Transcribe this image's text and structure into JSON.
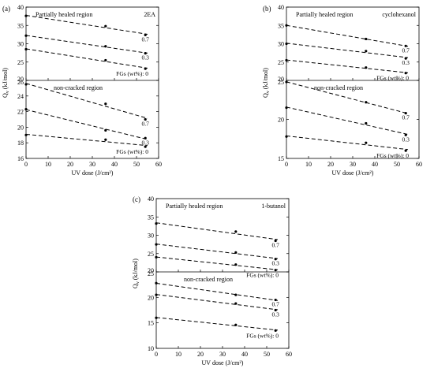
{
  "chart_data": [
    {
      "type": "scatter",
      "panel_label": "(a)",
      "solvent": "2EA",
      "xlabel": "UV dose (J/cm²)",
      "ylabel": "Qv (kJ/mol)",
      "xlim": [
        0,
        60
      ],
      "xticks": [
        "0",
        "10",
        "20",
        "30",
        "40",
        "50",
        "60"
      ],
      "fg_label": "FGs (wt%): 0",
      "subplots": [
        {
          "name": "Partially healed region",
          "ylim": [
            20,
            40
          ],
          "yticks": [
            "20",
            "25",
            "30",
            "35",
            "40"
          ],
          "series": [
            {
              "name": "0",
              "x": [
                0,
                36,
                54
              ],
              "y": [
                28.5,
                25.5,
                23.2
              ]
            },
            {
              "name": "0.3",
              "x": [
                0,
                36,
                54
              ],
              "y": [
                32.2,
                29.3,
                27.4
              ]
            },
            {
              "name": "0.7",
              "x": [
                0,
                36,
                54
              ],
              "y": [
                37.6,
                34.8,
                32.4
              ]
            }
          ],
          "series_labels": [
            "0.7",
            "0.3"
          ],
          "show_fg_label": true
        },
        {
          "name": "non-cracked region",
          "ylim": [
            16,
            26
          ],
          "yticks": [
            "16",
            "18",
            "20",
            "22",
            "24",
            "26"
          ],
          "series": [
            {
              "name": "0",
              "x": [
                0,
                36,
                54
              ],
              "y": [
                19.0,
                18.4,
                17.5
              ]
            },
            {
              "name": "0.3",
              "x": [
                0,
                36,
                54
              ],
              "y": [
                22.3,
                19.6,
                18.6
              ]
            },
            {
              "name": "0.7",
              "x": [
                0,
                36,
                54
              ],
              "y": [
                25.5,
                23.0,
                21.0
              ]
            }
          ],
          "series_labels": [
            "0.7",
            "0.3"
          ],
          "show_fg_label": true
        }
      ]
    },
    {
      "type": "scatter",
      "panel_label": "(b)",
      "solvent": "cyclohexanol",
      "xlabel": "UV dose (J/cm²)",
      "ylabel": "Qv (kJ/mol)",
      "xlim": [
        0,
        60
      ],
      "xticks": [
        "0",
        "10",
        "20",
        "30",
        "40",
        "50",
        "60"
      ],
      "fg_label": "FGs (wt%): 0",
      "subplots": [
        {
          "name": "Partially healed region",
          "ylim": [
            20,
            40
          ],
          "yticks": [
            "20",
            "25",
            "30",
            "35",
            "40"
          ],
          "series": [
            {
              "name": "0",
              "x": [
                0,
                36,
                54
              ],
              "y": [
                25.5,
                23.5,
                22.0
              ]
            },
            {
              "name": "0.3",
              "x": [
                0,
                36,
                54
              ],
              "y": [
                30.0,
                28.0,
                26.0
              ]
            },
            {
              "name": "0.7",
              "x": [
                0,
                36,
                54
              ],
              "y": [
                35.0,
                31.3,
                29.4
              ]
            }
          ],
          "series_labels": [
            "0.7",
            "0.3"
          ],
          "show_fg_label": true
        },
        {
          "name": "non-cracked region",
          "ylim": [
            15,
            25
          ],
          "yticks": [
            "15",
            "20",
            "25"
          ],
          "series": [
            {
              "name": "0",
              "x": [
                0,
                36,
                54
              ],
              "y": [
                17.8,
                17.0,
                16.0
              ]
            },
            {
              "name": "0.3",
              "x": [
                0,
                36,
                54
              ],
              "y": [
                21.5,
                19.5,
                18.0
              ]
            },
            {
              "name": "0.7",
              "x": [
                0,
                36,
                54
              ],
              "y": [
                24.8,
                22.2,
                20.8
              ]
            }
          ],
          "series_labels": [
            "0.7",
            "0.3"
          ],
          "show_fg_label": true
        }
      ]
    },
    {
      "type": "scatter",
      "panel_label": "(c)",
      "solvent": "1-butanol",
      "xlabel": "UV dose (J/cm²)",
      "ylabel": "Qv (kJ/mol)",
      "xlim": [
        0,
        60
      ],
      "xticks": [
        "0",
        "10",
        "20",
        "30",
        "40",
        "50",
        "60"
      ],
      "fg_label": "FGs (wt%): 0",
      "subplots": [
        {
          "name": "Partially healed region",
          "ylim": [
            20,
            40
          ],
          "yticks": [
            "20",
            "25",
            "30",
            "35",
            "40"
          ],
          "series": [
            {
              "name": "0",
              "x": [
                0,
                36,
                54
              ],
              "y": [
                24.0,
                22.0,
                20.5
              ]
            },
            {
              "name": "0.3",
              "x": [
                0,
                36,
                54
              ],
              "y": [
                27.5,
                25.3,
                23.5
              ]
            },
            {
              "name": "0.7",
              "x": [
                0,
                36,
                54
              ],
              "y": [
                33.2,
                31.0,
                28.5
              ]
            }
          ],
          "series_labels": [
            "0.7",
            "0.3"
          ],
          "show_fg_label": true
        },
        {
          "name": "non-cracked region",
          "ylim": [
            10,
            25
          ],
          "yticks": [
            "10",
            "15",
            "20",
            "25"
          ],
          "series": [
            {
              "name": "0",
              "x": [
                0,
                36,
                54
              ],
              "y": [
                16.0,
                14.6,
                13.5
              ]
            },
            {
              "name": "0.3",
              "x": [
                0,
                36,
                54
              ],
              "y": [
                20.5,
                18.8,
                17.5
              ]
            },
            {
              "name": "0.7",
              "x": [
                0,
                36,
                54
              ],
              "y": [
                22.8,
                20.5,
                19.5
              ]
            }
          ],
          "series_labels": [
            "0.7",
            "0.3"
          ],
          "show_fg_label": true
        }
      ]
    }
  ]
}
